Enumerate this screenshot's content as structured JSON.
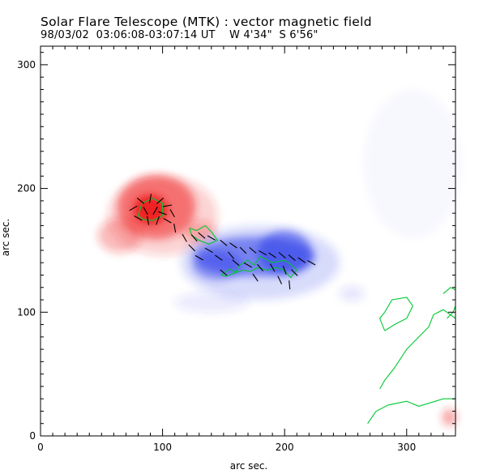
{
  "chart_data": {
    "type": "heatmap",
    "title": "Solar Flare Telescope (MTK) : vector magnetic field",
    "subtitle": "98/03/02  03:06:08-03:07:14 UT    W 4'34\"  S 6'56\"",
    "xlabel": "arc sec.",
    "ylabel": "arc sec.",
    "xlim": [
      0,
      340
    ],
    "ylim": [
      0,
      315
    ],
    "xticks": [
      0,
      100,
      200,
      300
    ],
    "yticks": [
      0,
      100,
      200,
      300
    ],
    "colors": {
      "positive": "#ee2020",
      "negative": "#2a3ae8",
      "contour": "#00c830",
      "vector": "#000000"
    },
    "regions": [
      {
        "polarity": "positive",
        "cx": 90,
        "cy": 183,
        "rx": 14,
        "ry": 12,
        "intensity": 1.0
      },
      {
        "polarity": "positive",
        "cx": 95,
        "cy": 185,
        "rx": 32,
        "ry": 26,
        "intensity": 0.55
      },
      {
        "polarity": "positive",
        "cx": 100,
        "cy": 178,
        "rx": 45,
        "ry": 32,
        "intensity": 0.2
      },
      {
        "polarity": "positive",
        "cx": 65,
        "cy": 162,
        "rx": 18,
        "ry": 14,
        "intensity": 0.3
      },
      {
        "polarity": "positive",
        "cx": 130,
        "cy": 165,
        "rx": 14,
        "ry": 9,
        "intensity": 0.25
      },
      {
        "polarity": "positive",
        "cx": 335,
        "cy": 15,
        "rx": 6,
        "ry": 7,
        "intensity": 0.4
      },
      {
        "polarity": "negative",
        "cx": 175,
        "cy": 145,
        "rx": 50,
        "ry": 16,
        "intensity": 0.55
      },
      {
        "polarity": "negative",
        "cx": 200,
        "cy": 148,
        "rx": 22,
        "ry": 18,
        "intensity": 0.55
      },
      {
        "polarity": "negative",
        "cx": 145,
        "cy": 138,
        "rx": 20,
        "ry": 12,
        "intensity": 0.45
      },
      {
        "polarity": "negative",
        "cx": 180,
        "cy": 140,
        "rx": 65,
        "ry": 30,
        "intensity": 0.18
      },
      {
        "polarity": "negative",
        "cx": 255,
        "cy": 115,
        "rx": 10,
        "ry": 6,
        "intensity": 0.12
      },
      {
        "polarity": "negative",
        "cx": 140,
        "cy": 108,
        "rx": 30,
        "ry": 8,
        "intensity": 0.1
      },
      {
        "polarity": "negative",
        "cx": 305,
        "cy": 220,
        "rx": 40,
        "ry": 60,
        "intensity": 0.03
      }
    ],
    "contours": [
      [
        [
          80,
          178
        ],
        [
          83,
          188
        ],
        [
          92,
          192
        ],
        [
          100,
          188
        ],
        [
          100,
          178
        ],
        [
          92,
          174
        ],
        [
          84,
          175
        ],
        [
          80,
          178
        ]
      ],
      [
        [
          122,
          168
        ],
        [
          128,
          166
        ],
        [
          135,
          170
        ],
        [
          140,
          165
        ],
        [
          145,
          158
        ],
        [
          138,
          155
        ],
        [
          130,
          158
        ],
        [
          124,
          162
        ],
        [
          122,
          168
        ]
      ],
      [
        [
          148,
          130
        ],
        [
          155,
          135
        ],
        [
          160,
          132
        ],
        [
          163,
          138
        ],
        [
          170,
          142
        ],
        [
          175,
          138
        ],
        [
          180,
          145
        ],
        [
          190,
          140
        ],
        [
          200,
          142
        ],
        [
          206,
          138
        ],
        [
          210,
          134
        ],
        [
          205,
          128
        ],
        [
          198,
          135
        ],
        [
          192,
          136
        ],
        [
          186,
          134
        ],
        [
          178,
          136
        ],
        [
          172,
          133
        ],
        [
          166,
          134
        ],
        [
          160,
          132
        ],
        [
          152,
          129
        ],
        [
          148,
          130
        ]
      ],
      [
        [
          268,
          10
        ],
        [
          275,
          20
        ],
        [
          285,
          25
        ],
        [
          300,
          28
        ],
        [
          310,
          24
        ],
        [
          330,
          30
        ],
        [
          340,
          30
        ]
      ],
      [
        [
          278,
          38
        ],
        [
          282,
          45
        ],
        [
          290,
          55
        ],
        [
          300,
          70
        ],
        [
          310,
          80
        ],
        [
          318,
          88
        ],
        [
          322,
          98
        ],
        [
          330,
          102
        ],
        [
          340,
          95
        ]
      ],
      [
        [
          282,
          85
        ],
        [
          290,
          90
        ],
        [
          300,
          95
        ],
        [
          305,
          105
        ],
        [
          300,
          112
        ],
        [
          288,
          110
        ],
        [
          282,
          100
        ],
        [
          278,
          95
        ],
        [
          282,
          85
        ]
      ],
      [
        [
          330,
          115
        ],
        [
          336,
          120
        ],
        [
          340,
          118
        ]
      ],
      [
        [
          333,
          95
        ],
        [
          338,
          100
        ],
        [
          340,
          105
        ]
      ]
    ],
    "vectors": [
      [
        82,
        190,
        -40
      ],
      [
        90,
        192,
        80
      ],
      [
        98,
        190,
        40
      ],
      [
        104,
        186,
        10
      ],
      [
        86,
        182,
        120
      ],
      [
        94,
        182,
        60
      ],
      [
        100,
        180,
        -20
      ],
      [
        80,
        176,
        150
      ],
      [
        88,
        174,
        100
      ],
      [
        96,
        174,
        70
      ],
      [
        104,
        174,
        -30
      ],
      [
        108,
        180,
        -60
      ],
      [
        76,
        184,
        30
      ],
      [
        110,
        168,
        -80
      ],
      [
        118,
        160,
        -60
      ],
      [
        126,
        160,
        -50
      ],
      [
        132,
        162,
        -40
      ],
      [
        140,
        160,
        -30
      ],
      [
        150,
        156,
        -40
      ],
      [
        158,
        154,
        -35
      ],
      [
        166,
        150,
        -45
      ],
      [
        174,
        150,
        -40
      ],
      [
        182,
        148,
        -30
      ],
      [
        190,
        146,
        -35
      ],
      [
        198,
        146,
        -40
      ],
      [
        206,
        144,
        -40
      ],
      [
        214,
        142,
        -35
      ],
      [
        222,
        140,
        -30
      ],
      [
        160,
        140,
        -40
      ],
      [
        170,
        138,
        -30
      ],
      [
        180,
        136,
        -50
      ],
      [
        190,
        136,
        -60
      ],
      [
        200,
        134,
        -70
      ],
      [
        208,
        132,
        -45
      ],
      [
        176,
        128,
        -55
      ],
      [
        196,
        126,
        -65
      ],
      [
        204,
        122,
        -85
      ],
      [
        150,
        132,
        -40
      ],
      [
        138,
        150,
        -30
      ],
      [
        130,
        144,
        -30
      ],
      [
        124,
        152,
        -45
      ],
      [
        146,
        144,
        -35
      ],
      [
        156,
        146,
        -50
      ]
    ]
  }
}
